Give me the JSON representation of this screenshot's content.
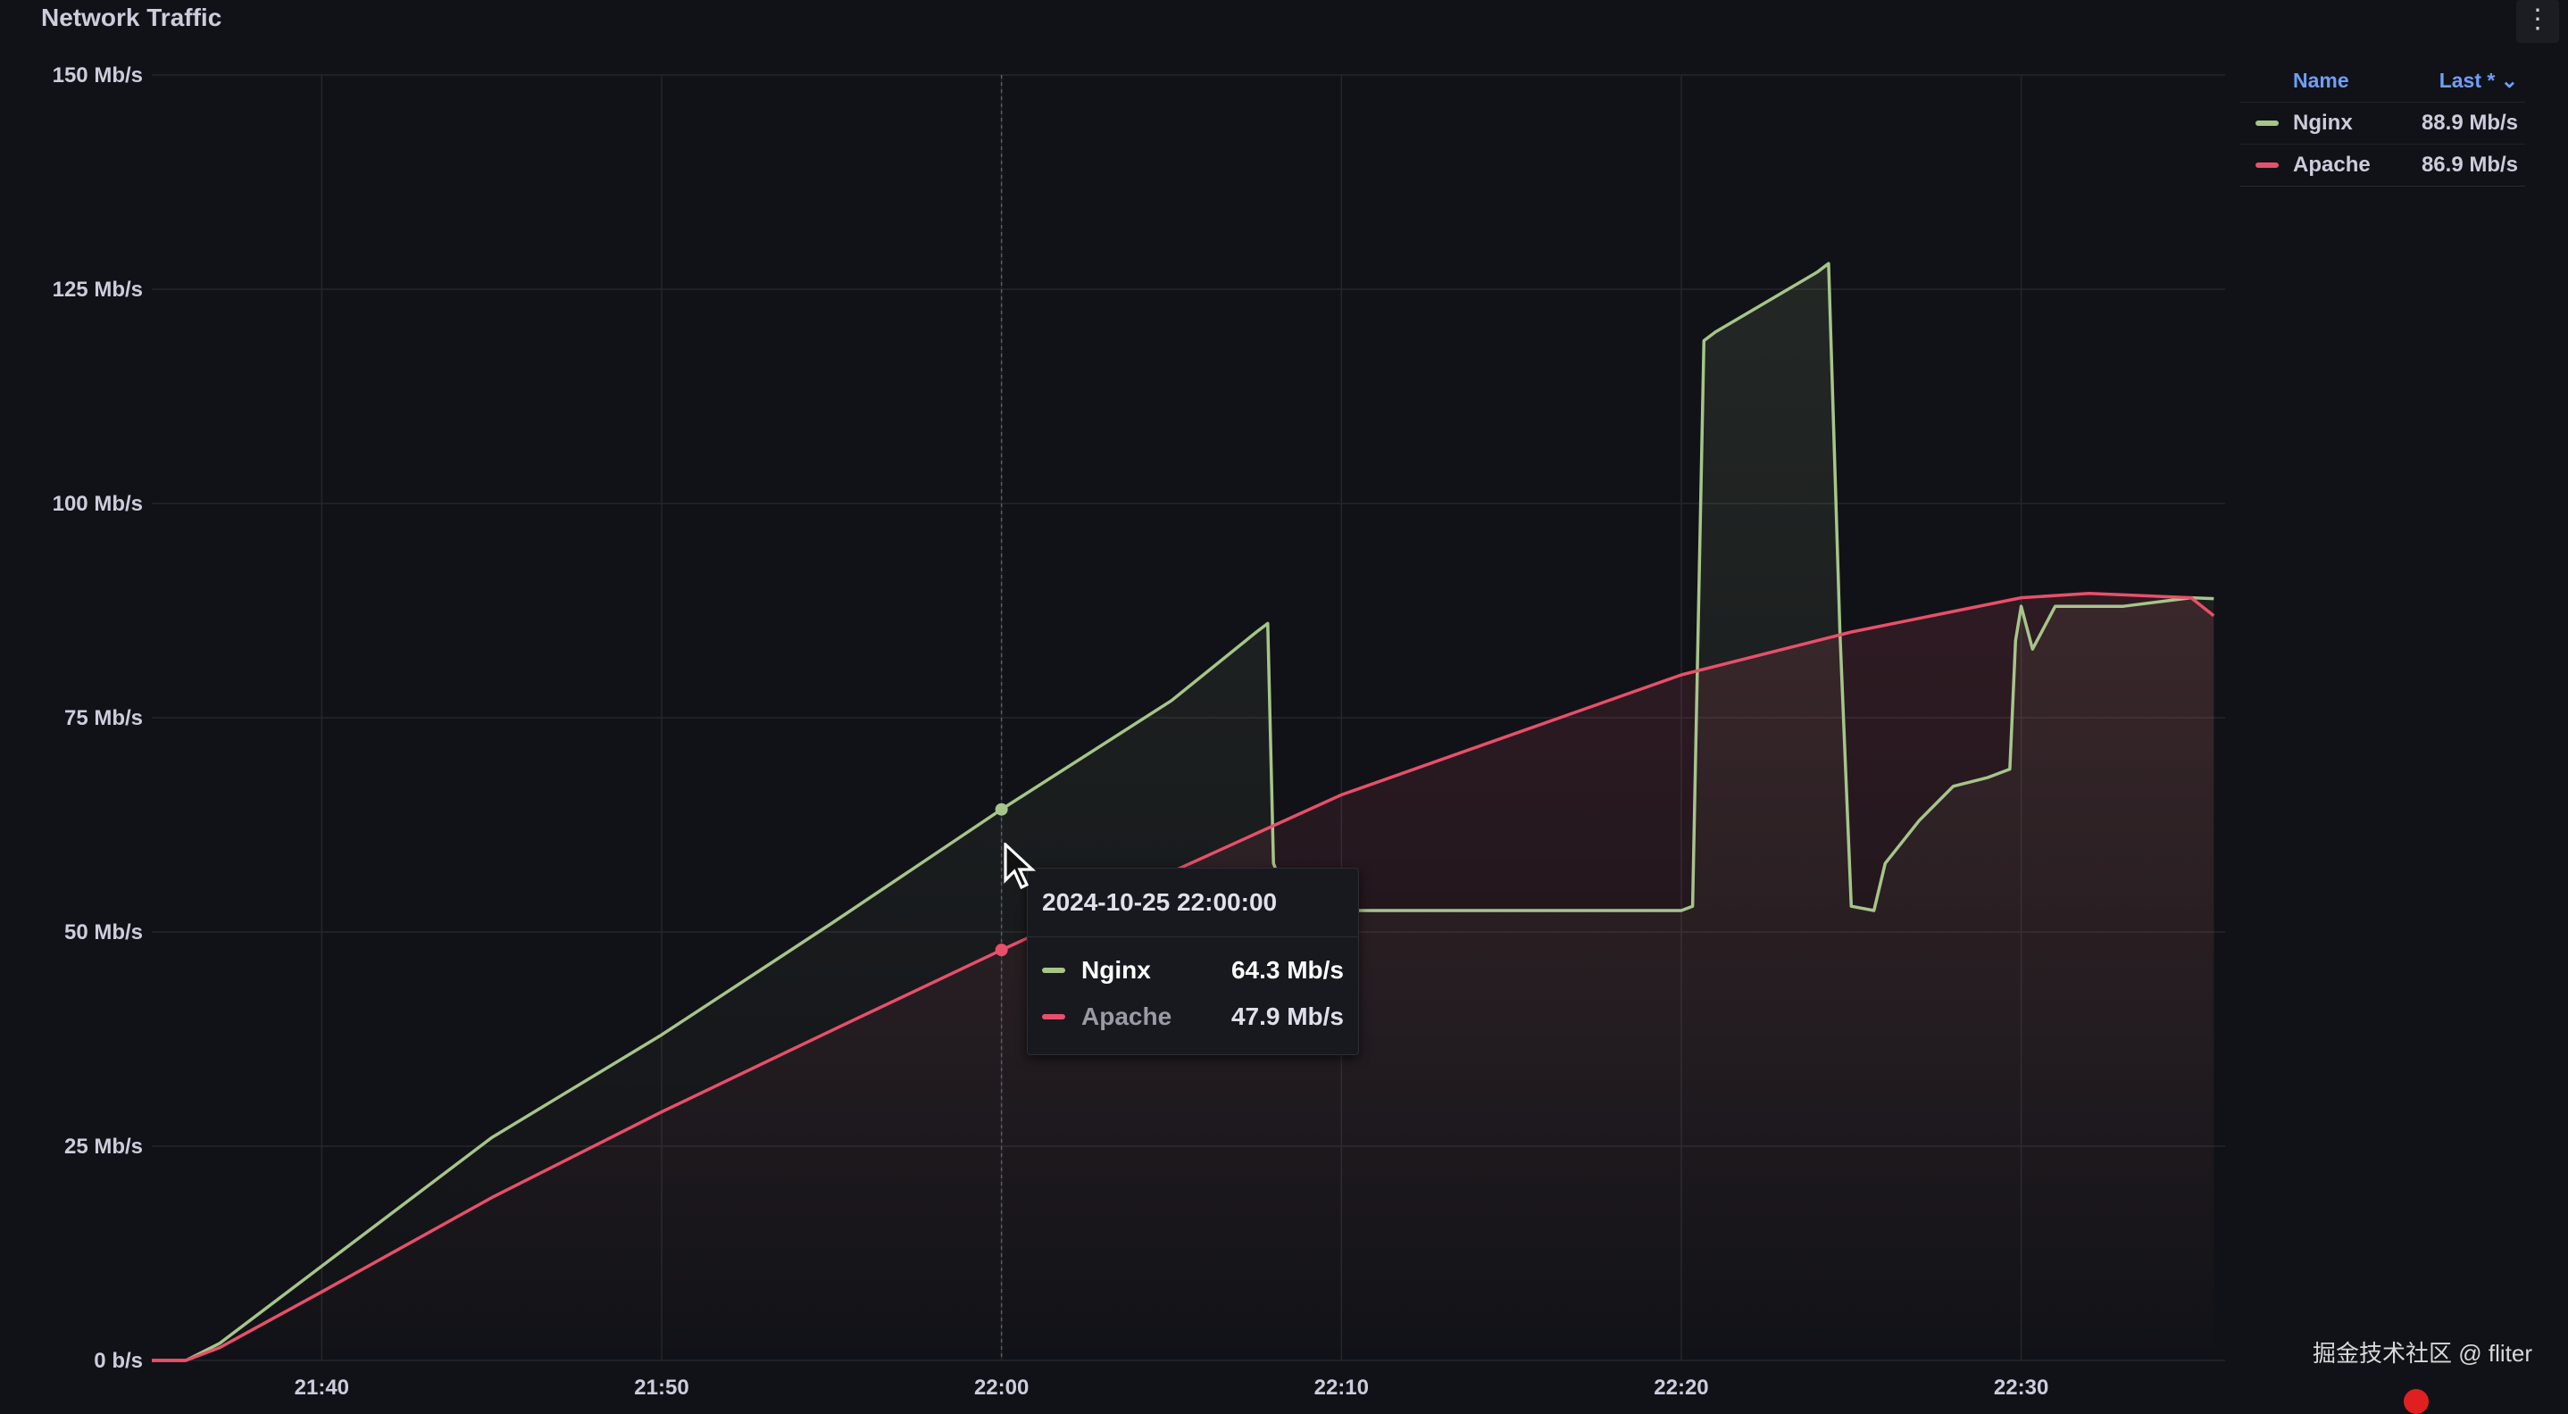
{
  "panel": {
    "title": "Network Traffic",
    "menu_icon": "more-vertical-icon"
  },
  "legend": {
    "header": {
      "name": "Name",
      "last": "Last *"
    },
    "items": [
      {
        "name": "Nginx",
        "last": "88.9 Mb/s",
        "color": "#a6c58a"
      },
      {
        "name": "Apache",
        "last": "86.9 Mb/s",
        "color": "#e8506a"
      }
    ]
  },
  "tooltip": {
    "time": "2024-10-25 22:00:00",
    "rows": [
      {
        "name": "Nginx",
        "value": "64.3 Mb/s",
        "color": "#a6c58a"
      },
      {
        "name": "Apache",
        "value": "47.9 Mb/s",
        "color": "#e8506a"
      }
    ]
  },
  "watermark": "掘金技术社区 @ fliter",
  "chart_data": {
    "type": "line",
    "title": "Network Traffic",
    "xlabel": "",
    "ylabel": "",
    "x_ticks": [
      "21:40",
      "21:50",
      "22:00",
      "22:10",
      "22:20",
      "22:30"
    ],
    "y_ticks": [
      "0 b/s",
      "25 Mb/s",
      "50 Mb/s",
      "75 Mb/s",
      "100 Mb/s",
      "125 Mb/s",
      "150 Mb/s"
    ],
    "xlim": [
      "21:35",
      "22:36"
    ],
    "ylim": [
      0,
      150
    ],
    "y_unit": "Mb/s",
    "grid": true,
    "legend_position": "top-right",
    "hover_time": "22:00",
    "series": [
      {
        "name": "Nginx",
        "color": "#a6c58a",
        "points": [
          [
            "21:35:00",
            0
          ],
          [
            "21:36:00",
            0
          ],
          [
            "21:37:00",
            2
          ],
          [
            "21:40:00",
            11
          ],
          [
            "21:45:00",
            26
          ],
          [
            "21:50:00",
            38
          ],
          [
            "21:55:00",
            51
          ],
          [
            "22:00:00",
            64.3
          ],
          [
            "22:05:00",
            77
          ],
          [
            "22:07:30",
            85
          ],
          [
            "22:07:50",
            86
          ],
          [
            "22:08:00",
            58
          ],
          [
            "22:08:30",
            53
          ],
          [
            "22:10:00",
            52.5
          ],
          [
            "22:15:00",
            52.5
          ],
          [
            "22:20:00",
            52.5
          ],
          [
            "22:20:20",
            53
          ],
          [
            "22:20:40",
            119
          ],
          [
            "22:21:00",
            120
          ],
          [
            "22:24:00",
            127
          ],
          [
            "22:24:20",
            128
          ],
          [
            "22:24:40",
            85
          ],
          [
            "22:25:00",
            53
          ],
          [
            "22:25:40",
            52.5
          ],
          [
            "22:26:00",
            58
          ],
          [
            "22:27:00",
            63
          ],
          [
            "22:28:00",
            67
          ],
          [
            "22:29:00",
            68
          ],
          [
            "22:29:40",
            69
          ],
          [
            "22:29:50",
            84
          ],
          [
            "22:30:00",
            88
          ],
          [
            "22:30:20",
            83
          ],
          [
            "22:31:00",
            88
          ],
          [
            "22:33:00",
            88
          ],
          [
            "22:35:00",
            89
          ],
          [
            "22:35:40",
            88.9
          ]
        ]
      },
      {
        "name": "Apache",
        "color": "#e8506a",
        "points": [
          [
            "21:35:00",
            0
          ],
          [
            "21:36:00",
            0
          ],
          [
            "21:37:00",
            1.5
          ],
          [
            "21:40:00",
            8
          ],
          [
            "21:45:00",
            19
          ],
          [
            "21:50:00",
            29
          ],
          [
            "21:55:00",
            38.5
          ],
          [
            "22:00:00",
            47.9
          ],
          [
            "22:05:00",
            57
          ],
          [
            "22:10:00",
            66
          ],
          [
            "22:15:00",
            73
          ],
          [
            "22:20:00",
            80
          ],
          [
            "22:25:00",
            85
          ],
          [
            "22:30:00",
            89
          ],
          [
            "22:32:00",
            89.5
          ],
          [
            "22:35:00",
            89
          ],
          [
            "22:35:40",
            86.9
          ]
        ]
      }
    ]
  }
}
